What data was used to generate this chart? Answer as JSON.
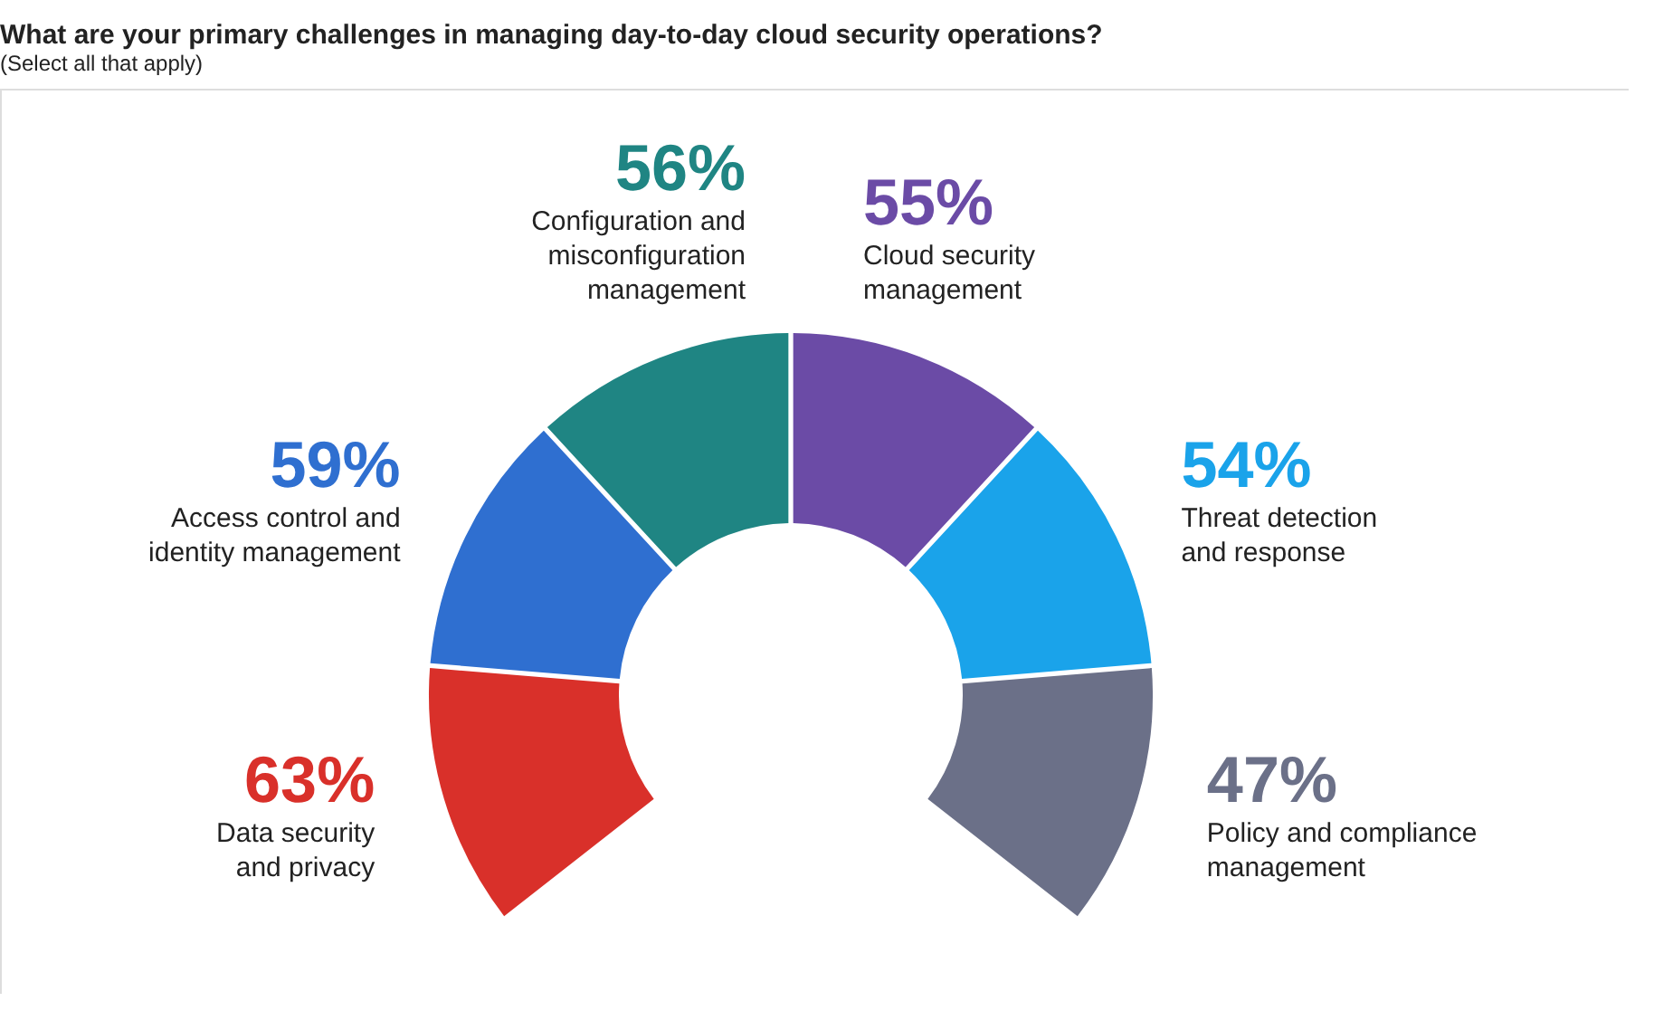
{
  "chart_data": {
    "type": "other",
    "title": "What are your primary challenges in managing day-to-day cloud security operations?",
    "subtitle": "(Select all that apply)",
    "categories": [
      "Data security\nand privacy",
      "Access control and\nidentity management",
      "Configuration and\nmisconfiguration\nmanagement",
      "Cloud security\nmanagement",
      "Threat detection\nand response",
      "Policy and compliance\nmanagement"
    ],
    "values": [
      63,
      59,
      56,
      55,
      54,
      47
    ],
    "value_labels": [
      "63%",
      "59%",
      "56%",
      "55%",
      "54%",
      "47%"
    ],
    "colors": [
      "#d9302a",
      "#2f6fd0",
      "#1f8583",
      "#6b4ba6",
      "#1aa3ea",
      "#6b7088"
    ]
  }
}
